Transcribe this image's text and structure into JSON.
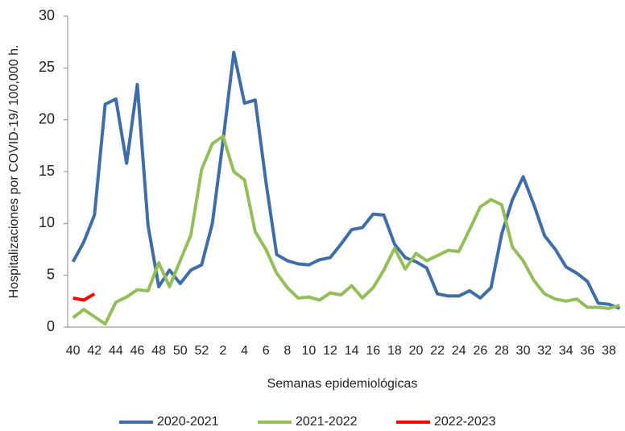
{
  "chart_data": {
    "type": "line",
    "y_label": "Hospitalizaciones por COVID-19/ 100,000 h.",
    "x_label": "Semanas epidemiológicas",
    "categories": [
      "40",
      null,
      "42",
      null,
      "44",
      null,
      "46",
      null,
      "48",
      null,
      "50",
      null,
      "52",
      null,
      "2",
      null,
      "4",
      null,
      "6",
      null,
      "8",
      null,
      "10",
      null,
      "12",
      null,
      "14",
      null,
      "16",
      null,
      "18",
      null,
      "20",
      null,
      "22",
      null,
      "24",
      null,
      "26",
      null,
      "28",
      null,
      "30",
      null,
      "32",
      null,
      "34",
      null,
      "36",
      null,
      "38",
      null
    ],
    "series": [
      {
        "name": "2020-2021",
        "color": "#3f6ea6",
        "values": [
          6.3,
          8.2,
          10.8,
          21.5,
          22.0,
          15.8,
          23.4,
          9.8,
          3.9,
          5.5,
          4.2,
          5.5,
          6.0,
          10.0,
          18.0,
          26.5,
          21.6,
          21.9,
          14.0,
          7.0,
          6.4,
          6.1,
          6.0,
          6.5,
          6.7,
          8.0,
          9.4,
          9.6,
          10.9,
          10.8,
          8.0,
          6.7,
          6.3,
          5.7,
          3.2,
          3.0,
          3.0,
          3.5,
          2.8,
          3.8,
          9.0,
          12.3,
          14.5,
          11.8,
          8.8,
          7.5,
          5.8,
          5.2,
          4.4,
          2.3,
          2.2,
          1.8
        ]
      },
      {
        "name": "2021-2022",
        "color": "#93be58",
        "values": [
          0.9,
          1.7,
          1.0,
          0.3,
          2.4,
          2.9,
          3.6,
          3.5,
          6.2,
          3.9,
          6.4,
          8.9,
          15.2,
          17.7,
          18.4,
          15.0,
          14.2,
          9.2,
          7.5,
          5.2,
          3.8,
          2.8,
          2.9,
          2.6,
          3.3,
          3.1,
          4.0,
          2.8,
          3.8,
          5.5,
          7.6,
          5.6,
          7.1,
          6.4,
          6.9,
          7.4,
          7.3,
          9.4,
          11.6,
          12.3,
          11.8,
          7.7,
          6.4,
          4.5,
          3.2,
          2.7,
          2.5,
          2.7,
          1.9,
          1.9,
          1.8,
          2.1
        ]
      },
      {
        "name": "2022-2023",
        "color": "#ff0000",
        "values": [
          2.8,
          2.6,
          3.2,
          null,
          null,
          null,
          null,
          null,
          null,
          null,
          null,
          null,
          null,
          null,
          null,
          null,
          null,
          null,
          null,
          null,
          null,
          null,
          null,
          null,
          null,
          null,
          null,
          null,
          null,
          null,
          null,
          null,
          null,
          null,
          null,
          null,
          null,
          null,
          null,
          null,
          null,
          null,
          null,
          null,
          null,
          null,
          null,
          null,
          null,
          null,
          null,
          null
        ]
      }
    ],
    "ylim": [
      0,
      30
    ],
    "yticks": [
      0,
      5,
      10,
      15,
      20,
      25,
      30
    ],
    "grid": false,
    "legend": "bottom"
  }
}
